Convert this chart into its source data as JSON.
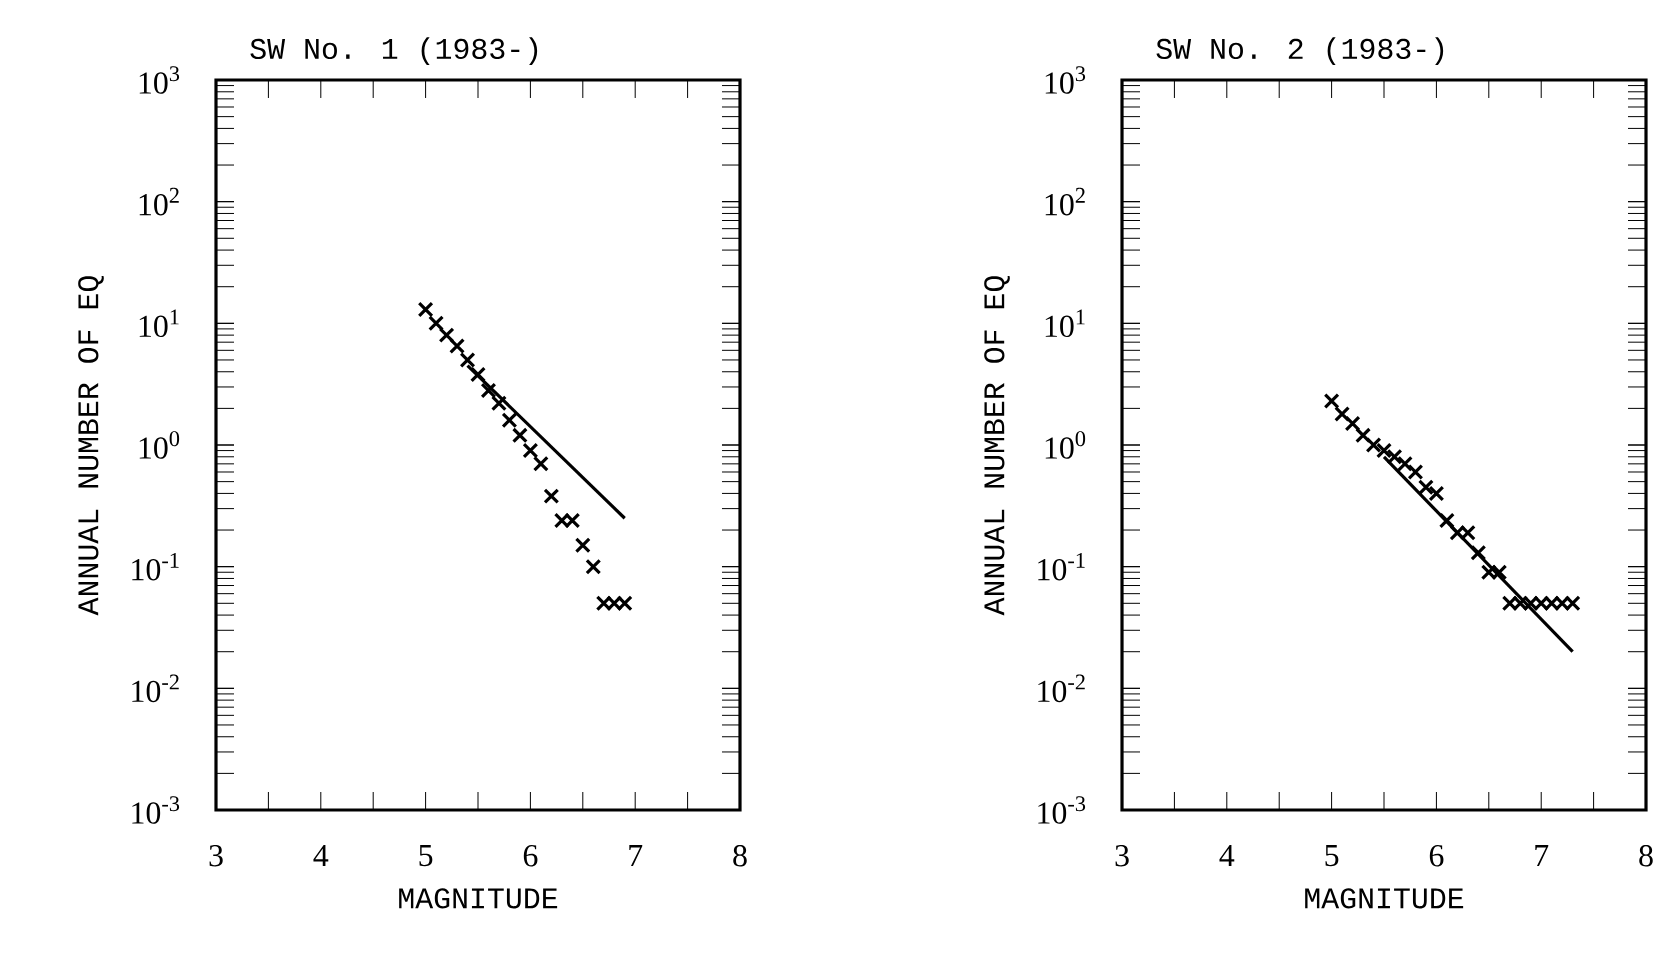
{
  "chart_data": [
    {
      "type": "scatter",
      "title": "SW No. 1 (1983-)",
      "xlabel": "MAGNITUDE",
      "ylabel": "ANNUAL NUMBER OF EQ",
      "log": "y",
      "xlim": [
        3,
        8
      ],
      "ylim": [
        0.001,
        1000
      ],
      "xticks": [
        3,
        4,
        5,
        6,
        7,
        8
      ],
      "yticks": [
        {
          "value": 0.001,
          "label": "10$^{-3}$"
        },
        {
          "value": 0.01,
          "label": "10$^{-2}$"
        },
        {
          "value": 0.1,
          "label": "10$^{-1}$"
        },
        {
          "value": 1,
          "label": "10$^{0}$"
        },
        {
          "value": 10,
          "label": "10$^{1}$"
        },
        {
          "value": 100,
          "label": "10$^{2}$"
        },
        {
          "value": 1000,
          "label": "10$^{3}$"
        }
      ],
      "series": [
        {
          "marker": "cross",
          "color": "#000000",
          "x": [
            5.0,
            5.1,
            5.2,
            5.3,
            5.4,
            5.5,
            5.6,
            5.7,
            5.8,
            5.9,
            6.0,
            6.1,
            6.2,
            6.3,
            6.4,
            6.5,
            6.6,
            6.7,
            6.8,
            6.9
          ],
          "values": [
            13,
            10,
            8,
            6.5,
            5,
            3.8,
            2.8,
            2.2,
            1.6,
            1.2,
            0.9,
            0.7,
            0.38,
            0.24,
            0.24,
            0.15,
            0.1,
            0.05,
            0.05,
            0.05
          ]
        },
        {
          "type": "line",
          "color": "#000000",
          "line_style": "solid",
          "x": [
            5.4,
            6.9
          ],
          "values": [
            4.5,
            0.25
          ]
        }
      ]
    },
    {
      "type": "scatter",
      "title": "SW No. 2 (1983-)",
      "xlabel": "MAGNITUDE",
      "ylabel": "ANNUAL NUMBER OF EQ",
      "log": "y",
      "xlim": [
        3,
        8
      ],
      "ylim": [
        0.001,
        1000
      ],
      "xticks": [
        3,
        4,
        5,
        6,
        7,
        8
      ],
      "yticks": [
        {
          "value": 0.001,
          "label": "10$^{-3}$"
        },
        {
          "value": 0.01,
          "label": "10$^{-2}$"
        },
        {
          "value": 0.1,
          "label": "10$^{-1}$"
        },
        {
          "value": 1,
          "label": "10$^{0}$"
        },
        {
          "value": 10,
          "label": "10$^{1}$"
        },
        {
          "value": 100,
          "label": "10$^{2}$"
        },
        {
          "value": 1000,
          "label": "10$^{3}$"
        }
      ],
      "series": [
        {
          "marker": "cross",
          "color": "#000000",
          "x": [
            5.0,
            5.1,
            5.2,
            5.3,
            5.4,
            5.5,
            5.6,
            5.7,
            5.8,
            5.9,
            6.0,
            6.1,
            6.2,
            6.3,
            6.4,
            6.5,
            6.6,
            6.7,
            6.8,
            6.9,
            7.0,
            7.1,
            7.2,
            7.3
          ],
          "values": [
            2.3,
            1.8,
            1.5,
            1.2,
            1.0,
            0.9,
            0.8,
            0.7,
            0.6,
            0.45,
            0.4,
            0.24,
            0.19,
            0.19,
            0.13,
            0.09,
            0.09,
            0.05,
            0.05,
            0.05,
            0.05,
            0.05,
            0.05,
            0.05
          ]
        },
        {
          "type": "line",
          "color": "#000000",
          "line_style": "solid",
          "x": [
            5.5,
            7.3
          ],
          "values": [
            0.8,
            0.02
          ]
        }
      ]
    }
  ]
}
